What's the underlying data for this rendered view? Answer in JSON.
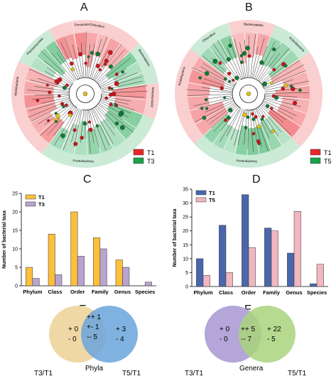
{
  "panels": {
    "A": {
      "letter": "A",
      "legend": [
        {
          "name": "T1",
          "color": "#e8262a"
        },
        {
          "name": "T3",
          "color": "#17a34a"
        }
      ],
      "ring_labels": [
        "Firmicutes",
        "Chloroflexi",
        "Bacteroidetes",
        "Actinobacteria",
        "Proteobacteria",
        "Acidobacteria",
        "Planctomycetes"
      ]
    },
    "B": {
      "letter": "B",
      "legend": [
        {
          "name": "T1",
          "color": "#e8262a"
        },
        {
          "name": "T5",
          "color": "#17a34a"
        }
      ],
      "ring_labels": [
        "Bacteroidetes",
        "Actinobacteria",
        "Proteobacteria",
        "Acidobacteria",
        "Chloroflexi"
      ]
    },
    "E": {
      "letter": "E",
      "left_set": "T3/T1",
      "right_set": "T5/T1",
      "caption": "Phyla",
      "left_only": [
        "+ 0",
        "- 0"
      ],
      "overlap": [
        "++ 1",
        "+- 1",
        "-- 5"
      ],
      "right_only": [
        "+ 3",
        "- 4"
      ],
      "left_color": "#f0d8a6",
      "right_color": "#6aa4dc"
    },
    "F": {
      "letter": "F",
      "left_set": "T3/T1",
      "right_set": "T5/T1",
      "caption": "Genera",
      "left_only": [
        "+ 0",
        "- 0"
      ],
      "overlap": [
        "++ 5",
        "-- 7"
      ],
      "right_only": [
        "+ 22",
        "- 5"
      ],
      "left_color": "#b4a6d8",
      "right_color": "#a9d37d"
    }
  },
  "chart_data": [
    {
      "id": "C",
      "letter": "C",
      "type": "bar",
      "categories": [
        "Phylum",
        "Class",
        "Order",
        "Family",
        "Genus",
        "Species"
      ],
      "series": [
        {
          "name": "T1",
          "values": [
            5,
            14,
            20,
            13,
            7,
            0
          ],
          "color": "#fbbf3c"
        },
        {
          "name": "T3",
          "values": [
            2,
            3,
            8,
            10,
            5,
            1
          ],
          "color": "#b8a4cf"
        }
      ],
      "ylabel": "Number of bacterial taxa",
      "ylim": [
        0,
        25
      ],
      "yticks": [
        0,
        5,
        10,
        15,
        20,
        25
      ],
      "legend": "top-left"
    },
    {
      "id": "D",
      "letter": "D",
      "type": "bar",
      "categories": [
        "Phylum",
        "Class",
        "Order",
        "Family",
        "Genus",
        "Species"
      ],
      "series": [
        {
          "name": "T1",
          "values": [
            10,
            22,
            33,
            21,
            12,
            1
          ],
          "color": "#4a67ad"
        },
        {
          "name": "T5",
          "values": [
            4,
            5,
            14,
            20,
            27,
            8
          ],
          "color": "#f0b7c0"
        }
      ],
      "ylabel": "Number of bacterial taxa",
      "ylim": [
        0,
        35
      ],
      "yticks": [
        0,
        5,
        10,
        15,
        20,
        25,
        30,
        35
      ],
      "legend": "top-left"
    }
  ]
}
